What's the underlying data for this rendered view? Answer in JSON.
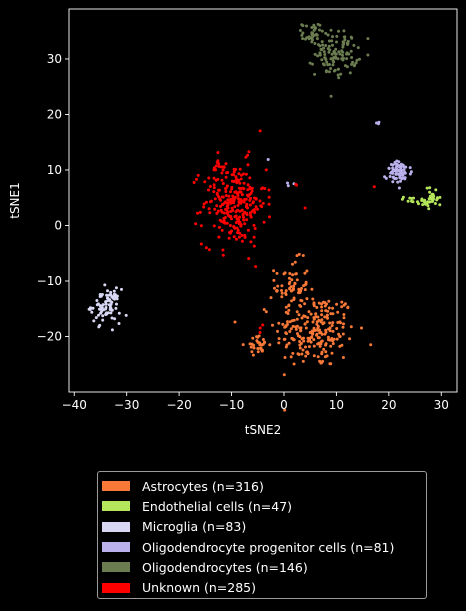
{
  "chart_data": {
    "type": "scatter",
    "xlabel": "tSNE2",
    "ylabel": "tSNE1",
    "xlim": [
      -41,
      33
    ],
    "ylim": [
      -30,
      39
    ],
    "xticks": [
      -40,
      -30,
      -20,
      -10,
      0,
      10,
      20,
      30
    ],
    "yticks": [
      -20,
      -10,
      0,
      10,
      20,
      30
    ],
    "legend_position": "below",
    "background": "#000000",
    "series": [
      {
        "name": "Astrocytes (n=316)",
        "color": "#f87837",
        "clusters": [
          {
            "cx": 6,
            "cy": -19,
            "sx": 3.8,
            "sy": 3.4,
            "n": 220
          },
          {
            "cx": 1.5,
            "cy": -11,
            "sx": 1.6,
            "sy": 2.4,
            "n": 66
          },
          {
            "cx": -5,
            "cy": -21.5,
            "sx": 1.1,
            "sy": 0.8,
            "n": 30
          }
        ]
      },
      {
        "name": "Endothelial cells (n=47)",
        "color": "#b4e55a",
        "clusters": [
          {
            "cx": 28.5,
            "cy": 5,
            "sx": 0.8,
            "sy": 1.0,
            "n": 28
          },
          {
            "cx": 25,
            "cy": 4.5,
            "sx": 1.5,
            "sy": 0.4,
            "n": 19
          }
        ]
      },
      {
        "name": "Microglia (n=83)",
        "color": "#d8d8f4",
        "clusters": [
          {
            "cx": -34,
            "cy": -14.5,
            "sx": 1.4,
            "sy": 1.5,
            "n": 83
          }
        ]
      },
      {
        "name": "Oligodendrocyte progenitor cells (n=81)",
        "color": "#bab0ec",
        "clusters": [
          {
            "cx": 22,
            "cy": 9.5,
            "sx": 1.2,
            "sy": 1.0,
            "n": 74
          },
          {
            "cx": 18,
            "cy": 18.7,
            "sx": 0.2,
            "sy": 0.3,
            "n": 3
          },
          {
            "cx": 1.5,
            "cy": 7.3,
            "sx": 0.5,
            "sy": 0.2,
            "n": 3
          },
          {
            "cx": -3,
            "cy": 12,
            "sx": 0.1,
            "sy": 0.1,
            "n": 1
          }
        ]
      },
      {
        "name": "Oligodendrocytes (n=146)",
        "color": "#6b7c50",
        "clusters": [
          {
            "cx": 10,
            "cy": 31,
            "sx": 2.0,
            "sy": 2.0,
            "n": 110
          },
          {
            "cx": 5.5,
            "cy": 34.5,
            "sx": 1.0,
            "sy": 1.0,
            "n": 36
          }
        ]
      },
      {
        "name": "Unknown (n=285)",
        "color": "#ff0000",
        "clusters": [
          {
            "cx": -9.5,
            "cy": 4,
            "sx": 3.0,
            "sy": 3.8,
            "n": 270
          },
          {
            "cx": -13,
            "cy": 11,
            "sx": 1.5,
            "sy": 0.8,
            "n": 8
          },
          {
            "cx": 2,
            "cy": 7.2,
            "sx": 0.3,
            "sy": 0.2,
            "n": 2
          },
          {
            "cx": -4,
            "cy": -18.5,
            "sx": 0.3,
            "sy": 0.5,
            "n": 3
          },
          {
            "cx": 17,
            "cy": 7,
            "sx": 0.1,
            "sy": 0.1,
            "n": 1
          },
          {
            "cx": 4,
            "cy": 3,
            "sx": 0.1,
            "sy": 0.1,
            "n": 1
          }
        ]
      }
    ]
  }
}
